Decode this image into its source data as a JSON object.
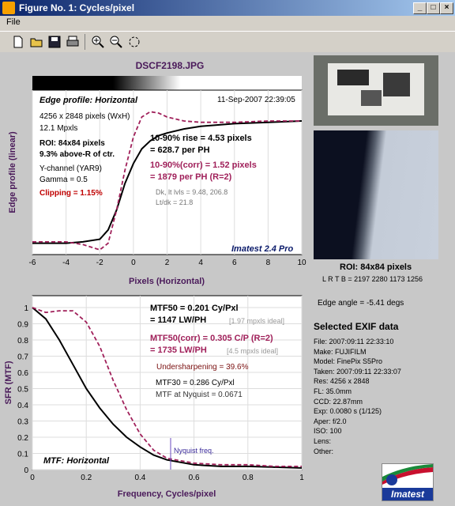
{
  "window": {
    "title": "Figure No. 1: Cycles/pixel",
    "controls": [
      "_",
      "□",
      "×"
    ]
  },
  "menu": {
    "file": "File"
  },
  "toolbar": {
    "icons": [
      "new-file-icon",
      "open-folder-icon",
      "save-icon",
      "print-icon",
      "zoom-in-icon",
      "zoom-out-icon",
      "rotate-icon"
    ]
  },
  "figure": {
    "filename": "DSCF2198.JPG",
    "edge_plot": {
      "title": "Edge profile: Horizontal",
      "date": "11-Sep-2007 22:39:05",
      "xlabel": "Pixels (Horizontal)",
      "ylabel": "Edge profile (linear)",
      "xticks": [
        "-6",
        "-4",
        "-2",
        "0",
        "2",
        "4",
        "6",
        "8",
        "10"
      ],
      "info": [
        "4256 x 2848 pixels (WxH)",
        "12.1 Mpxls"
      ],
      "roi": "ROI: 84x84 pixels",
      "roi_pos": "9.3% above-R of ctr.",
      "channel": "Y-channel  (YAR9)",
      "gamma": "Gamma = 0.5",
      "clipping": "Clipping =   1.15%",
      "rise1": "10-90% rise = 4.53 pixels",
      "rise2": "= 628.7 per PH",
      "corr1": "10-90%(corr) = 1.52 pixels",
      "corr2": "= 1879 per PH  (R=2)",
      "dk": "Dk, lt lvls = 9.48, 206.8",
      "ltdk": "Lt/dk = 21.8",
      "brand": "Imatest 2.4 Pro"
    },
    "mtf_plot": {
      "title": "MTF: Horizontal",
      "xlabel": "Frequency, Cycles/pixel",
      "ylabel": "SFR (MTF)",
      "xticks": [
        "0",
        "0.2",
        "0.4",
        "0.6",
        "0.8",
        "1"
      ],
      "yticks": [
        "1",
        "0.9",
        "0.8",
        "0.7",
        "0.6",
        "0.5",
        "0.4",
        "0.3",
        "0.2",
        "0.1",
        "0"
      ],
      "mtf50a": "MTF50 = 0.201 Cy/Pxl",
      "mtf50b": "= 1147 LW/PH",
      "ideal1": "[1.97 mpxls ideal]",
      "mtf50c": "MTF50(corr) = 0.305 C/P  (R=2)",
      "mtf50d": "= 1735 LW/PH",
      "ideal2": "[4.5 mpxls ideal]",
      "under": "Undersharpening = 39.6%",
      "mtf30": "MTF30 = 0.286 Cy/Pxl",
      "nyq": "MTF at Nyquist = 0.0671",
      "nyq_label": "Nyquist freq."
    },
    "roi_label": "ROI: 84x84 pixels",
    "lrtb": "L R  T B = 2197 2280  1173 1256",
    "edge_angle": "Edge angle = -5.41 degs",
    "exif_title": "Selected EXIF data",
    "exif": [
      "File:  2007:09:11  22:33:10",
      "Make:  FUJIFILM",
      "Model:  FinePix S5Pro",
      "Taken:  2007:09:11  22:33:07",
      "Res:    4256 x 2848",
      "FL:    35.0mm",
      "CCD:    22.87mm",
      "Exp:    0.0080 s  (1/125)",
      "Aper:   f/2.0",
      "ISO:    100",
      "Lens:",
      "Other:"
    ],
    "logo": "Imatest"
  },
  "chart_data": [
    {
      "type": "line",
      "title": "Edge profile: Horizontal",
      "xlabel": "Pixels (Horizontal)",
      "ylabel": "Edge profile (linear)",
      "xlim": [
        -6,
        10
      ],
      "series": [
        {
          "x": [
            -6,
            -4,
            -3,
            -2,
            -1.5,
            -1,
            -0.5,
            0,
            0.5,
            1,
            1.5,
            2,
            3,
            4,
            6,
            8,
            10
          ],
          "y": [
            0.05,
            0.05,
            0.06,
            0.08,
            0.15,
            0.3,
            0.5,
            0.65,
            0.76,
            0.82,
            0.86,
            0.88,
            0.91,
            0.93,
            0.95,
            0.96,
            0.97
          ]
        },
        {
          "x": [
            -6,
            -4,
            -3,
            -2,
            -1.5,
            -1,
            -0.5,
            0,
            0.5,
            1,
            1.5,
            2,
            3,
            4,
            6,
            8,
            10
          ],
          "y": [
            0.06,
            0.06,
            0.04,
            0.0,
            0.05,
            0.3,
            0.6,
            0.85,
            1.0,
            1.04,
            1.03,
            1.0,
            0.97,
            0.96,
            0.96,
            0.97,
            0.97
          ]
        }
      ]
    },
    {
      "type": "line",
      "title": "MTF: Horizontal",
      "xlabel": "Frequency, Cycles/pixel",
      "ylabel": "SFR (MTF)",
      "xlim": [
        0,
        1
      ],
      "ylim": [
        0,
        1
      ],
      "series": [
        {
          "x": [
            0,
            0.05,
            0.1,
            0.15,
            0.2,
            0.25,
            0.3,
            0.35,
            0.4,
            0.45,
            0.5,
            0.6,
            0.7,
            0.8,
            0.9,
            1.0
          ],
          "y": [
            1.0,
            0.93,
            0.8,
            0.65,
            0.5,
            0.38,
            0.28,
            0.2,
            0.14,
            0.09,
            0.06,
            0.03,
            0.02,
            0.02,
            0.015,
            0.01
          ]
        },
        {
          "x": [
            0,
            0.05,
            0.1,
            0.15,
            0.2,
            0.25,
            0.3,
            0.35,
            0.4,
            0.45,
            0.5,
            0.6,
            0.7,
            0.8,
            0.9,
            1.0
          ],
          "y": [
            1.0,
            0.97,
            0.98,
            0.98,
            0.91,
            0.76,
            0.55,
            0.37,
            0.22,
            0.12,
            0.07,
            0.04,
            0.03,
            0.03,
            0.02,
            0.02
          ]
        }
      ]
    }
  ]
}
